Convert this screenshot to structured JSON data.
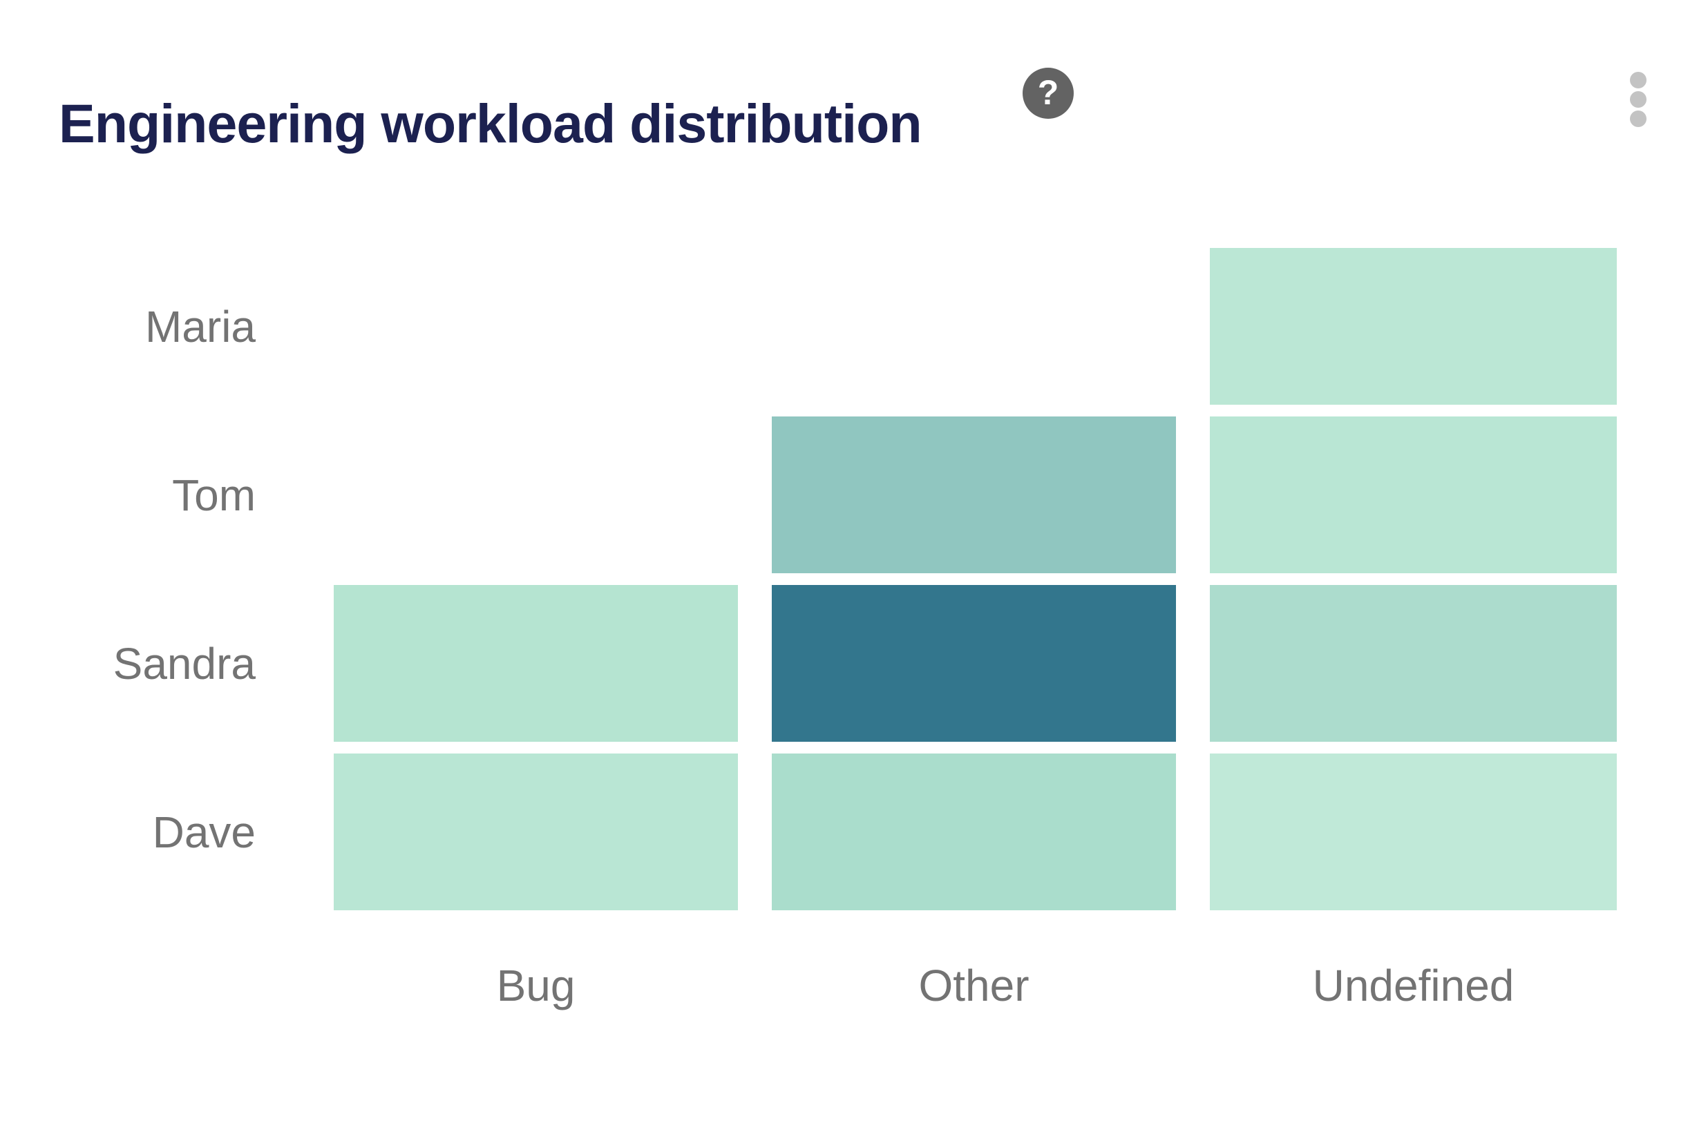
{
  "card": {
    "bg_color": "#ffffff"
  },
  "header": {
    "title": "Engineering workload distribution",
    "title_color": "#1c2150",
    "help_icon": {
      "name": "question-mark-circle-icon",
      "glyph": "?",
      "bg_color": "#636363",
      "fg_color": "#ffffff"
    },
    "menu_icon": {
      "name": "kebab-menu-icon",
      "dot_color": "#c3c3c3"
    }
  },
  "chart_data": {
    "type": "heatmap",
    "title": "Engineering workload distribution",
    "x_categories": [
      "Bug",
      "Other",
      "Undefined"
    ],
    "y_categories": [
      "Maria",
      "Tom",
      "Sandra",
      "Dave"
    ],
    "rows": [
      {
        "name": "Maria",
        "cells": [
          null,
          null,
          {
            "color": "#bbe7d5",
            "level": "low"
          }
        ]
      },
      {
        "name": "Tom",
        "cells": [
          null,
          {
            "color": "#90c6c0",
            "level": "medium"
          },
          {
            "color": "#b9e6d4",
            "level": "low"
          }
        ]
      },
      {
        "name": "Sandra",
        "cells": [
          {
            "color": "#b5e4d1",
            "level": "low"
          },
          {
            "color": "#33768d",
            "level": "high"
          },
          {
            "color": "#acdccd",
            "level": "low-medium"
          }
        ]
      },
      {
        "name": "Dave",
        "cells": [
          {
            "color": "#b9e6d4",
            "level": "low"
          },
          {
            "color": "#aaddcc",
            "level": "low-medium"
          },
          {
            "color": "#c0e9d8",
            "level": "low"
          }
        ]
      }
    ],
    "axis_label_color": "#737373",
    "legend_position": "none",
    "grid_lines": "off"
  }
}
